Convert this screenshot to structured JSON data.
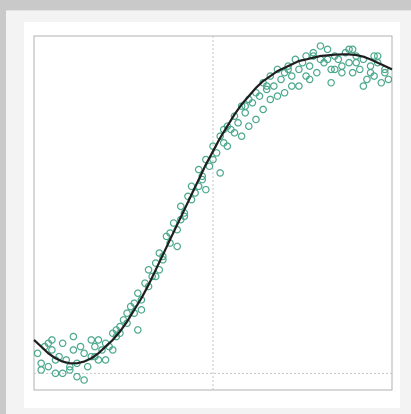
{
  "chart_data": {
    "type": "scatter",
    "title": "",
    "xlabel": "",
    "ylabel": "",
    "xlim": [
      0,
      1
    ],
    "ylim": [
      0,
      1
    ],
    "grid": false,
    "reference_lines": {
      "vertical_x": 0.5,
      "horizontal_y": 0.02
    },
    "colors": {
      "points": "#4aa88c",
      "fit_line": "#1e1e1e",
      "axes": "#b0b0b0",
      "reference": "#c4c4c4"
    },
    "series": [
      {
        "kind": "points",
        "x": [
          0.01,
          0.02,
          0.03,
          0.04,
          0.05,
          0.06,
          0.07,
          0.08,
          0.09,
          0.1,
          0.11,
          0.12,
          0.13,
          0.14,
          0.15,
          0.16,
          0.17,
          0.18,
          0.19,
          0.2,
          0.21,
          0.22,
          0.23,
          0.24,
          0.25,
          0.26,
          0.27,
          0.28,
          0.29,
          0.3,
          0.31,
          0.32,
          0.33,
          0.34,
          0.35,
          0.36,
          0.37,
          0.38,
          0.39,
          0.4,
          0.41,
          0.42,
          0.43,
          0.44,
          0.45,
          0.46,
          0.47,
          0.48,
          0.49,
          0.5,
          0.51,
          0.52,
          0.53,
          0.54,
          0.55,
          0.56,
          0.57,
          0.58,
          0.59,
          0.6,
          0.61,
          0.62,
          0.63,
          0.64,
          0.65,
          0.66,
          0.67,
          0.68,
          0.69,
          0.7,
          0.71,
          0.72,
          0.73,
          0.74,
          0.75,
          0.76,
          0.77,
          0.78,
          0.79,
          0.8,
          0.81,
          0.82,
          0.83,
          0.84,
          0.85,
          0.86,
          0.87,
          0.88,
          0.89,
          0.9,
          0.91,
          0.92,
          0.93,
          0.94,
          0.95,
          0.96,
          0.97,
          0.98,
          0.99,
          0.02,
          0.05,
          0.08,
          0.11,
          0.14,
          0.17,
          0.2,
          0.23,
          0.26,
          0.29,
          0.32,
          0.35,
          0.38,
          0.41,
          0.44,
          0.47,
          0.5,
          0.53,
          0.56,
          0.59,
          0.62,
          0.65,
          0.68,
          0.71,
          0.74,
          0.77,
          0.8,
          0.83,
          0.86,
          0.89,
          0.92,
          0.95,
          0.98,
          0.04,
          0.1,
          0.16,
          0.22,
          0.28,
          0.34,
          0.4,
          0.46,
          0.52,
          0.58,
          0.64,
          0.7,
          0.76,
          0.82,
          0.88,
          0.94,
          0.06,
          0.18,
          0.3,
          0.42,
          0.54,
          0.66,
          0.78,
          0.9,
          0.12,
          0.24,
          0.36,
          0.48,
          0.6,
          0.72,
          0.84,
          0.96
        ],
        "y": [
          0.08,
          0.05,
          0.1,
          0.04,
          0.09,
          0.02,
          0.07,
          0.11,
          0.06,
          0.03,
          0.09,
          0.05,
          0.1,
          0.08,
          0.04,
          0.12,
          0.07,
          0.06,
          0.09,
          0.11,
          0.1,
          0.14,
          0.13,
          0.16,
          0.18,
          0.17,
          0.22,
          0.2,
          0.26,
          0.24,
          0.29,
          0.33,
          0.31,
          0.35,
          0.38,
          0.37,
          0.43,
          0.41,
          0.47,
          0.45,
          0.52,
          0.5,
          0.55,
          0.58,
          0.56,
          0.63,
          0.61,
          0.66,
          0.64,
          0.7,
          0.68,
          0.73,
          0.71,
          0.76,
          0.75,
          0.79,
          0.77,
          0.82,
          0.8,
          0.84,
          0.83,
          0.86,
          0.85,
          0.89,
          0.87,
          0.91,
          0.88,
          0.93,
          0.9,
          0.92,
          0.94,
          0.91,
          0.96,
          0.93,
          0.95,
          0.97,
          0.94,
          0.98,
          0.92,
          0.96,
          0.95,
          0.99,
          0.93,
          0.97,
          0.96,
          0.94,
          0.98,
          0.95,
          0.92,
          0.97,
          0.93,
          0.96,
          0.9,
          0.94,
          0.91,
          0.95,
          0.89,
          0.92,
          0.9,
          0.03,
          0.12,
          0.02,
          0.13,
          0.0,
          0.1,
          0.06,
          0.15,
          0.2,
          0.15,
          0.28,
          0.33,
          0.44,
          0.48,
          0.54,
          0.6,
          0.66,
          0.75,
          0.74,
          0.82,
          0.78,
          0.88,
          0.85,
          0.93,
          0.88,
          0.9,
          1.0,
          0.89,
          0.92,
          0.99,
          0.88,
          0.97,
          0.93,
          0.11,
          0.04,
          0.07,
          0.09,
          0.23,
          0.31,
          0.4,
          0.58,
          0.62,
          0.73,
          0.81,
          0.86,
          0.91,
          0.96,
          0.99,
          0.92,
          0.06,
          0.12,
          0.21,
          0.49,
          0.7,
          0.84,
          0.97,
          0.95,
          0.01,
          0.14,
          0.36,
          0.57,
          0.76,
          0.88,
          0.93,
          0.97
        ]
      },
      {
        "kind": "fit",
        "x": [
          0.0,
          0.02,
          0.04,
          0.06,
          0.08,
          0.1,
          0.12,
          0.14,
          0.16,
          0.18,
          0.2,
          0.22,
          0.24,
          0.26,
          0.28,
          0.3,
          0.32,
          0.34,
          0.36,
          0.38,
          0.4,
          0.42,
          0.44,
          0.46,
          0.48,
          0.5,
          0.52,
          0.54,
          0.56,
          0.58,
          0.6,
          0.62,
          0.64,
          0.66,
          0.68,
          0.7,
          0.72,
          0.74,
          0.76,
          0.78,
          0.8,
          0.82,
          0.84,
          0.86,
          0.88,
          0.9,
          0.92,
          0.94,
          0.96,
          0.98,
          1.0
        ],
        "y": [
          0.12,
          0.1,
          0.08,
          0.065,
          0.055,
          0.05,
          0.05,
          0.055,
          0.065,
          0.08,
          0.1,
          0.12,
          0.145,
          0.175,
          0.21,
          0.245,
          0.285,
          0.33,
          0.375,
          0.42,
          0.465,
          0.51,
          0.555,
          0.6,
          0.645,
          0.685,
          0.725,
          0.76,
          0.795,
          0.825,
          0.85,
          0.875,
          0.895,
          0.91,
          0.925,
          0.935,
          0.945,
          0.955,
          0.96,
          0.965,
          0.97,
          0.972,
          0.974,
          0.975,
          0.975,
          0.973,
          0.968,
          0.96,
          0.95,
          0.94,
          0.93
        ]
      }
    ]
  }
}
